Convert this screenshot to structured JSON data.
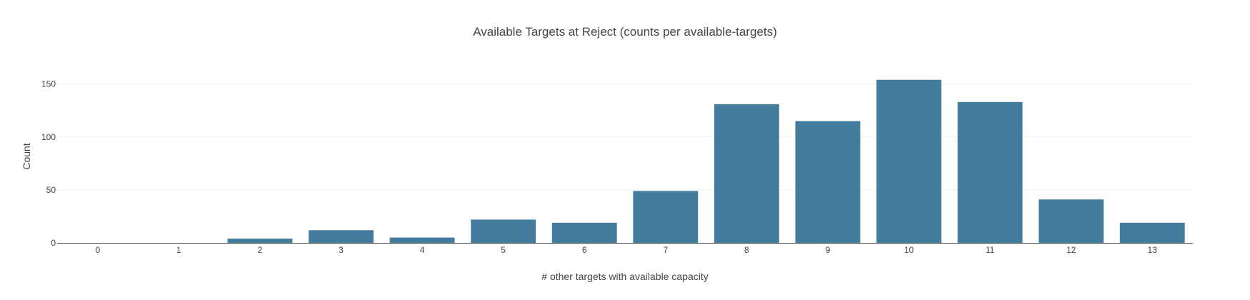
{
  "chart_data": {
    "type": "bar",
    "title": "Available Targets at Reject (counts per available-targets)",
    "xlabel": "# other targets with available capacity",
    "ylabel": "Count",
    "categories": [
      "0",
      "1",
      "2",
      "3",
      "4",
      "5",
      "6",
      "7",
      "8",
      "9",
      "10",
      "11",
      "12",
      "13"
    ],
    "values": [
      0,
      0,
      4,
      12,
      5,
      22,
      19,
      49,
      131,
      115,
      154,
      133,
      41,
      19
    ],
    "ylim": [
      0,
      170
    ],
    "yticks": [
      0,
      50,
      100,
      150
    ],
    "grid": true,
    "bar_color": "#447c9e"
  }
}
